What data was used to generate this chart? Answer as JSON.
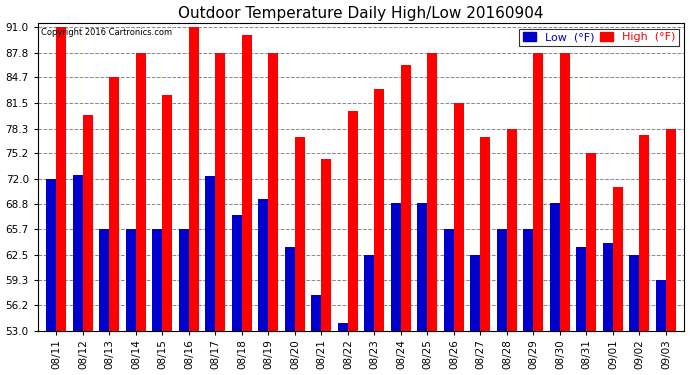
{
  "title": "Outdoor Temperature Daily High/Low 20160904",
  "copyright": "Copyright 2016 Cartronics.com",
  "legend_low": "Low  (°F)",
  "legend_high": "High  (°F)",
  "dates": [
    "08/11",
    "08/12",
    "08/13",
    "08/14",
    "08/15",
    "08/16",
    "08/17",
    "08/18",
    "08/19",
    "08/20",
    "08/21",
    "08/22",
    "08/23",
    "08/24",
    "08/25",
    "08/26",
    "08/27",
    "08/28",
    "08/29",
    "08/30",
    "08/31",
    "09/01",
    "09/02",
    "09/03"
  ],
  "high": [
    91.0,
    80.0,
    84.7,
    87.8,
    82.5,
    91.0,
    87.8,
    90.0,
    87.8,
    77.3,
    74.5,
    80.5,
    83.2,
    86.2,
    87.8,
    81.5,
    77.3,
    78.3,
    87.8,
    87.8,
    75.2,
    71.0,
    77.5,
    78.3
  ],
  "low": [
    72.0,
    72.5,
    65.7,
    65.7,
    65.7,
    65.7,
    72.3,
    67.5,
    69.5,
    63.5,
    57.5,
    54.0,
    62.5,
    69.0,
    69.0,
    65.7,
    62.5,
    65.7,
    65.7,
    69.0,
    63.5,
    64.0,
    62.5,
    59.3
  ],
  "ylim_min": 53.0,
  "ylim_max": 91.0,
  "yticks": [
    53.0,
    56.2,
    59.3,
    62.5,
    65.7,
    68.8,
    72.0,
    75.2,
    78.3,
    81.5,
    84.7,
    87.8,
    91.0
  ],
  "bar_width": 0.38,
  "high_color": "#ff0000",
  "low_color": "#0000cc",
  "background_color": "#ffffff",
  "grid_color": "#888888",
  "title_fontsize": 11,
  "tick_fontsize": 7.5,
  "legend_fontsize": 8
}
